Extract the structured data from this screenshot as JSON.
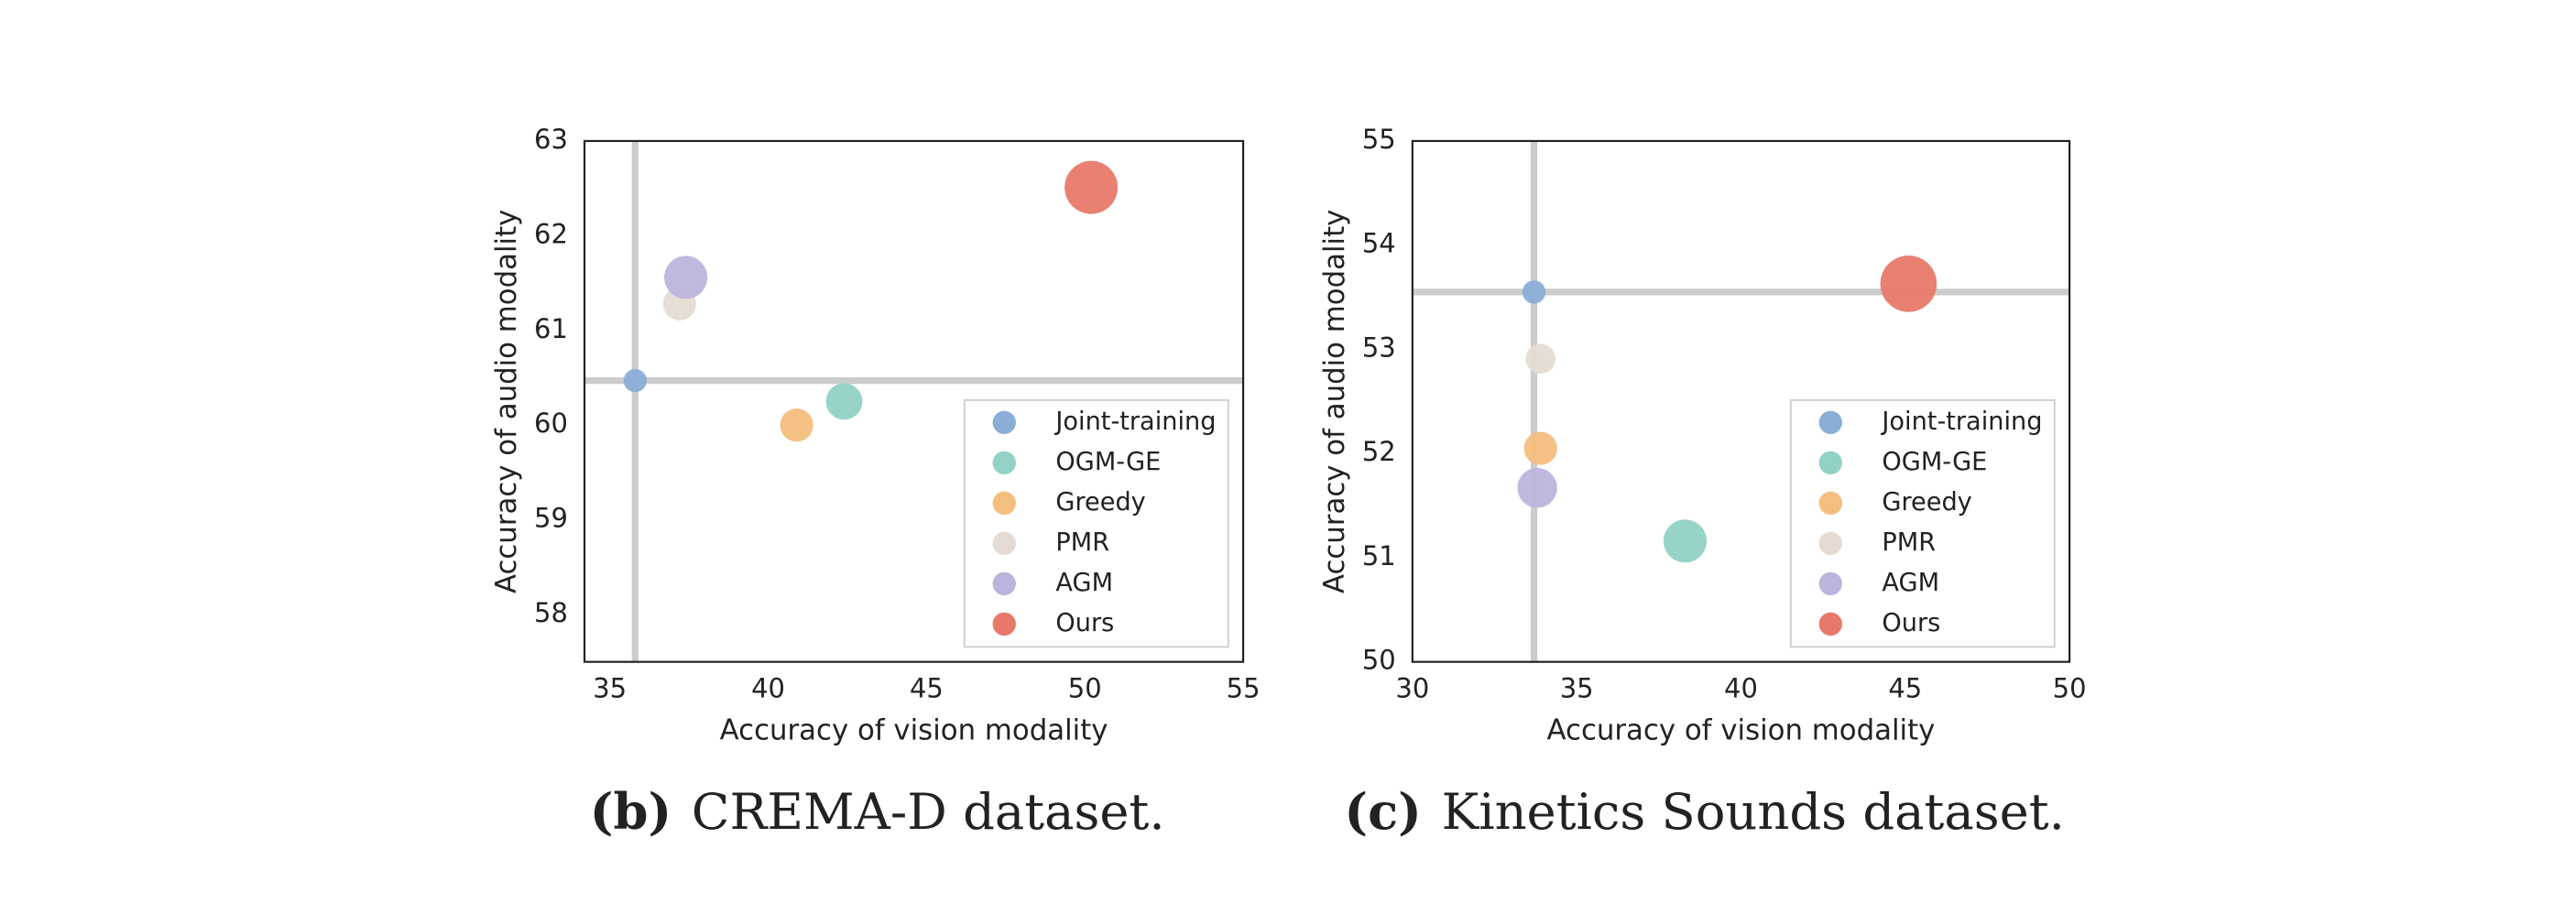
{
  "chart_data": [
    {
      "type": "scatter",
      "xlabel": "Accuracy of vision modality",
      "ylabel": "Accuracy of audio modality",
      "xlim": [
        34.2,
        55
      ],
      "ylim": [
        57.5,
        63
      ],
      "xticks": [
        35,
        40,
        45,
        50,
        55
      ],
      "yticks": [
        58,
        59,
        60,
        61,
        62,
        63
      ],
      "grid": false,
      "legend": "lower right",
      "caption": {
        "label": "(b)",
        "text": "CREMA-D dataset."
      },
      "series": [
        {
          "name": "Joint-training",
          "color": "#8aaed6",
          "x": [
            35.8
          ],
          "values": [
            60.47
          ],
          "sizes": [
            7
          ]
        },
        {
          "name": "OGM-GE",
          "color": "#92d1c5",
          "x": [
            42.4
          ],
          "values": [
            60.25
          ],
          "sizes": [
            11
          ]
        },
        {
          "name": "Greedy",
          "color": "#f4be7e",
          "x": [
            40.9
          ],
          "values": [
            60.0
          ],
          "sizes": [
            10
          ]
        },
        {
          "name": "PMR",
          "color": "#e5dbd3",
          "x": [
            37.2
          ],
          "values": [
            61.28
          ],
          "sizes": [
            10
          ]
        },
        {
          "name": "AGM",
          "color": "#bdb4dd",
          "x": [
            37.4
          ],
          "values": [
            61.56
          ],
          "sizes": [
            13
          ]
        },
        {
          "name": "Ours",
          "color": "#e8796a",
          "x": [
            50.2
          ],
          "values": [
            62.51
          ],
          "sizes": [
            16
          ]
        }
      ]
    },
    {
      "type": "scatter",
      "xlabel": "Accuracy of vision modality",
      "ylabel": "Accuracy of audio modality",
      "xlim": [
        30,
        50
      ],
      "ylim": [
        50,
        55
      ],
      "xticks": [
        30,
        35,
        40,
        45,
        50
      ],
      "yticks": [
        50,
        51,
        52,
        53,
        54,
        55
      ],
      "grid": false,
      "legend": "lower right",
      "caption": {
        "label": "(c)",
        "text": "Kinetics Sounds dataset."
      },
      "series": [
        {
          "name": "Joint-training",
          "color": "#8aaed6",
          "x": [
            33.7
          ],
          "values": [
            53.55
          ],
          "sizes": [
            7
          ]
        },
        {
          "name": "OGM-GE",
          "color": "#92d1c5",
          "x": [
            38.3
          ],
          "values": [
            51.16
          ],
          "sizes": [
            13
          ]
        },
        {
          "name": "Greedy",
          "color": "#f4be7e",
          "x": [
            33.9
          ],
          "values": [
            52.05
          ],
          "sizes": [
            10
          ]
        },
        {
          "name": "PMR",
          "color": "#e5dbd3",
          "x": [
            33.9
          ],
          "values": [
            52.91
          ],
          "sizes": [
            9
          ]
        },
        {
          "name": "AGM",
          "color": "#bdb4dd",
          "x": [
            33.8
          ],
          "values": [
            51.67
          ],
          "sizes": [
            12
          ]
        },
        {
          "name": "Ours",
          "color": "#e8796a",
          "x": [
            45.1
          ],
          "values": [
            53.63
          ],
          "sizes": [
            17
          ]
        }
      ]
    }
  ]
}
